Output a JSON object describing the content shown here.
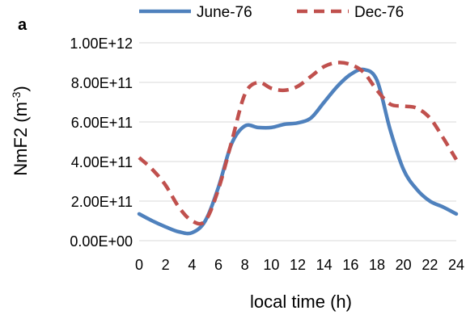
{
  "panel_label": "a",
  "chart_data": {
    "type": "line",
    "xlabel": "local time (h)",
    "ylabel": "NmF2 (m",
    "ylabel_sup": "-3",
    "ylabel_close": ")",
    "xlim": [
      0,
      24
    ],
    "ylim": [
      0,
      1000000000000.0
    ],
    "x_ticks": [
      0,
      2,
      4,
      6,
      8,
      10,
      12,
      14,
      16,
      18,
      20,
      22,
      24
    ],
    "x_tick_labels": [
      "0",
      "2",
      "4",
      "6",
      "8",
      "10",
      "12",
      "14",
      "16",
      "18",
      "20",
      "22",
      "24"
    ],
    "y_ticks": [
      0,
      200000000000.0,
      400000000000.0,
      600000000000.0,
      800000000000.0,
      1000000000000.0
    ],
    "y_tick_labels": [
      "0.00E+00",
      "2.00E+11",
      "4.00E+11",
      "6.00E+11",
      "8.00E+11",
      "1.00E+12"
    ],
    "grid": "horizontal",
    "legend_position": "top",
    "series": [
      {
        "name": "June-76",
        "color": "#4f81bd",
        "style": "solid",
        "x": [
          0,
          1,
          2,
          3,
          4,
          5,
          6,
          7,
          8,
          9,
          10,
          11,
          12,
          13,
          14,
          15,
          16,
          17,
          18,
          19,
          20,
          21,
          22,
          23,
          24
        ],
        "y": [
          135000000000.0,
          100000000000.0,
          70000000000.0,
          45000000000.0,
          40000000000.0,
          100000000000.0,
          270000000000.0,
          490000000000.0,
          580000000000.0,
          572000000000.0,
          572000000000.0,
          588000000000.0,
          595000000000.0,
          620000000000.0,
          700000000000.0,
          780000000000.0,
          840000000000.0,
          865000000000.0,
          810000000000.0,
          560000000000.0,
          360000000000.0,
          260000000000.0,
          200000000000.0,
          170000000000.0,
          135000000000.0
        ]
      },
      {
        "name": "Dec-76",
        "color": "#c0504d",
        "style": "dashed",
        "x": [
          0,
          1,
          2,
          3,
          4,
          5,
          6,
          7,
          8,
          9,
          10,
          11,
          12,
          13,
          14,
          15,
          16,
          17,
          18,
          19,
          20,
          21,
          22,
          23,
          24
        ],
        "y": [
          420000000000.0,
          360000000000.0,
          280000000000.0,
          170000000000.0,
          100000000000.0,
          100000000000.0,
          260000000000.0,
          500000000000.0,
          740000000000.0,
          800000000000.0,
          770000000000.0,
          760000000000.0,
          780000000000.0,
          830000000000.0,
          880000000000.0,
          900000000000.0,
          890000000000.0,
          850000000000.0,
          760000000000.0,
          690000000000.0,
          680000000000.0,
          670000000000.0,
          620000000000.0,
          520000000000.0,
          410000000000.0
        ]
      }
    ]
  }
}
